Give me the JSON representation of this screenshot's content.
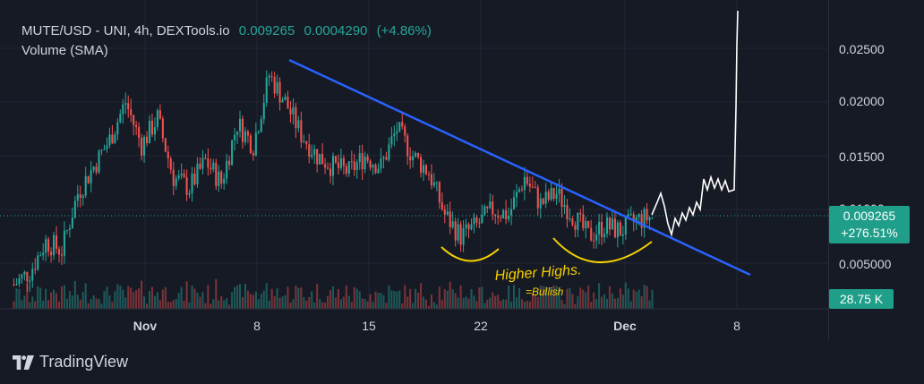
{
  "legend": {
    "title": "MUTE/USD - UNI, 4h, DEXTools.io",
    "close": "0.009265",
    "change": "0.0004290",
    "change_pct": "(+4.86%)",
    "indicator": "Volume (SMA)"
  },
  "price_axis": {
    "ticks": [
      "0.02500",
      "0.02000",
      "0.01500",
      "0.01000",
      "0.005000"
    ],
    "last_price": "0.009265",
    "last_change_pct": "+276.51%",
    "volume_label": "28.75 K"
  },
  "time_axis": {
    "ticks": [
      "Nov",
      "8",
      "15",
      "22",
      "Dec",
      "8"
    ]
  },
  "annotation": {
    "text_line1": "Higher Highs.",
    "text_line2": "=Bullish"
  },
  "branding": {
    "name": "TradingView"
  },
  "colors": {
    "up": "#26a69a",
    "down": "#ef5350",
    "trendline": "#2962ff",
    "annotation": "#f5d000",
    "projection": "#ffffff"
  },
  "chart_data": {
    "type": "candlestick",
    "symbol": "MUTE/USD",
    "interval": "4h",
    "ylim": [
      0.0,
      0.0275
    ],
    "close_path": [
      {
        "x": "Oct 24",
        "y": 0.003
      },
      {
        "x": "Oct 27",
        "y": 0.0042
      },
      {
        "x": "Oct 28",
        "y": 0.007
      },
      {
        "x": "Oct 29",
        "y": 0.0062
      },
      {
        "x": "Oct 30",
        "y": 0.0115
      },
      {
        "x": "Oct 31",
        "y": 0.014
      },
      {
        "x": "Nov 1",
        "y": 0.0165
      },
      {
        "x": "Nov 2",
        "y": 0.02
      },
      {
        "x": "Nov 3",
        "y": 0.016
      },
      {
        "x": "Nov 4",
        "y": 0.0185
      },
      {
        "x": "Nov 5",
        "y": 0.013
      },
      {
        "x": "Nov 6",
        "y": 0.012
      },
      {
        "x": "Nov 7",
        "y": 0.0145
      },
      {
        "x": "Nov 8",
        "y": 0.0125
      },
      {
        "x": "Nov 9",
        "y": 0.018
      },
      {
        "x": "Nov 10",
        "y": 0.016
      },
      {
        "x": "Nov 11",
        "y": 0.0225
      },
      {
        "x": "Nov 12",
        "y": 0.02
      },
      {
        "x": "Nov 13",
        "y": 0.017
      },
      {
        "x": "Nov 14",
        "y": 0.015
      },
      {
        "x": "Nov 15",
        "y": 0.014
      },
      {
        "x": "Nov 16",
        "y": 0.0135
      },
      {
        "x": "Nov 17",
        "y": 0.015
      },
      {
        "x": "Nov 18",
        "y": 0.014
      },
      {
        "x": "Nov 19",
        "y": 0.0175
      },
      {
        "x": "Nov 20",
        "y": 0.015
      },
      {
        "x": "Nov 21",
        "y": 0.0135
      },
      {
        "x": "Nov 22",
        "y": 0.0095
      },
      {
        "x": "Nov 23",
        "y": 0.0075
      },
      {
        "x": "Nov 24",
        "y": 0.0085
      },
      {
        "x": "Nov 25",
        "y": 0.01
      },
      {
        "x": "Nov 26",
        "y": 0.0095
      },
      {
        "x": "Nov 27",
        "y": 0.013
      },
      {
        "x": "Nov 28",
        "y": 0.0105
      },
      {
        "x": "Nov 29",
        "y": 0.0115
      },
      {
        "x": "Nov 30",
        "y": 0.0095
      },
      {
        "x": "Dec 1",
        "y": 0.0075
      },
      {
        "x": "Dec 2",
        "y": 0.0085
      },
      {
        "x": "Dec 3",
        "y": 0.008
      },
      {
        "x": "Dec 4",
        "y": 0.009
      },
      {
        "x": "Dec 5",
        "y": 0.0093
      }
    ]
  }
}
